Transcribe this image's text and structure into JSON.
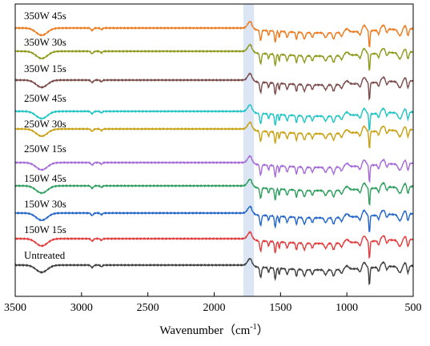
{
  "chart_data": {
    "type": "line",
    "title": "",
    "xlabel": "Wavenumber（cm",
    "xlabel_sup": "-1",
    "xlabel_close": "）",
    "ylabel": "",
    "xlim": [
      3500,
      500
    ],
    "x_reversed": true,
    "x_ticks": [
      "3500",
      "3000",
      "2500",
      "2000",
      "1500",
      "1000",
      "500"
    ],
    "y_axis_ticks_visible": false,
    "grid": false,
    "legend": "none",
    "highlight_band": {
      "x": [
        1780,
        1700
      ],
      "color": "#dbe5f4"
    },
    "series": [
      {
        "name": "Untreated",
        "color": "#3f3f3f"
      },
      {
        "name": "150W 15s",
        "color": "#e23b3b"
      },
      {
        "name": "150W 30s",
        "color": "#2366c8"
      },
      {
        "name": "150W 45s",
        "color": "#2e9e5e"
      },
      {
        "name": "250W 15s",
        "color": "#a56ad8"
      },
      {
        "name": "250W 30s",
        "color": "#c9a114"
      },
      {
        "name": "250W 45s",
        "color": "#20c4c4"
      },
      {
        "name": "350W 15s",
        "color": "#7b4a4a"
      },
      {
        "name": "350W 30s",
        "color": "#8f9a1c"
      },
      {
        "name": "350W 45s",
        "color": "#ee7a1e"
      }
    ]
  }
}
